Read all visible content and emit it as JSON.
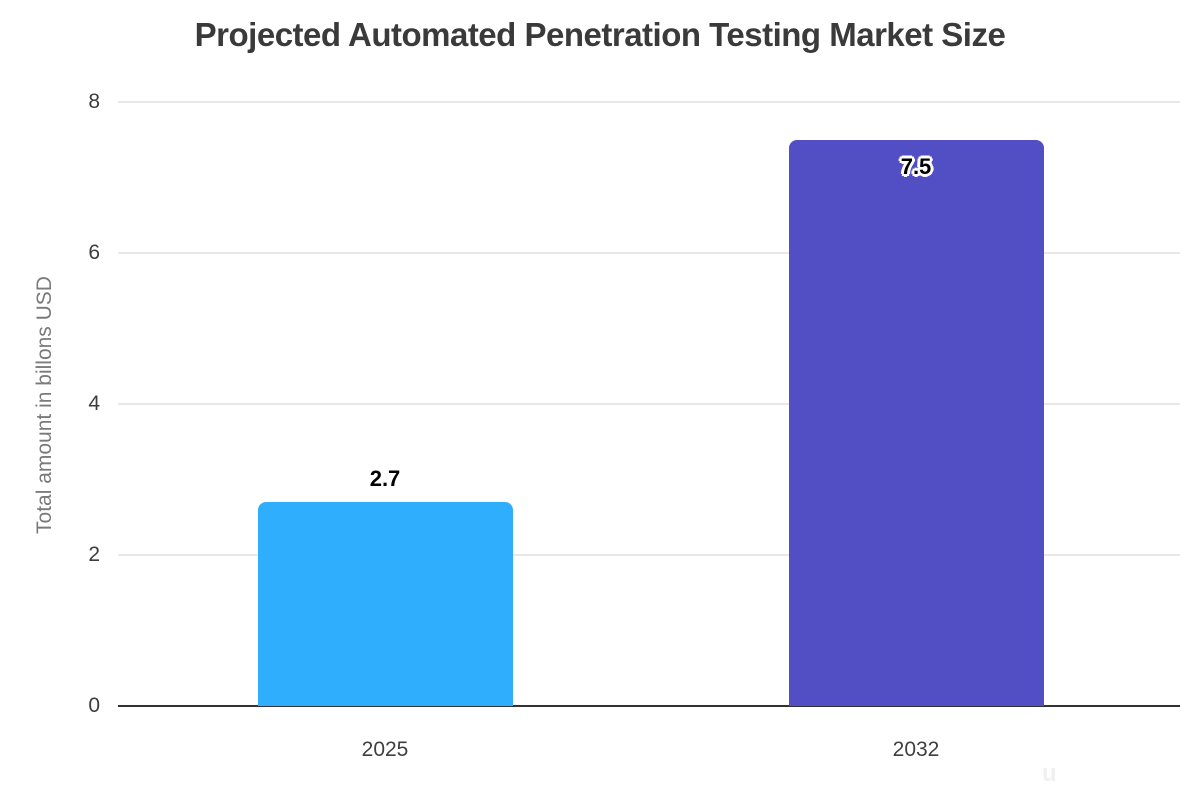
{
  "chart_data": {
    "type": "bar",
    "title": "Projected Automated Penetration Testing Market Size",
    "categories": [
      "2025",
      "2032"
    ],
    "values": [
      2.7,
      7.5
    ],
    "data_labels": [
      "2.7",
      "7.5"
    ],
    "xlabel": "",
    "ylabel": "Total amount in billons USD",
    "ylim": [
      0,
      8
    ],
    "yticks": [
      0,
      2,
      4,
      6,
      8
    ],
    "grid": true,
    "legend": "none",
    "bar_colors": [
      "#2eaefd",
      "#524fc4"
    ],
    "title_color": "#3a3a3a",
    "grid_color": "#e8e8e8",
    "baseline_color": "#323232",
    "tick_color": "#3d3d3d",
    "ylabel_color": "#7a7a7a",
    "data_label_color": "#000000",
    "data_label_outline": "#ffffff"
  },
  "watermark": {
    "glyph": "u"
  }
}
